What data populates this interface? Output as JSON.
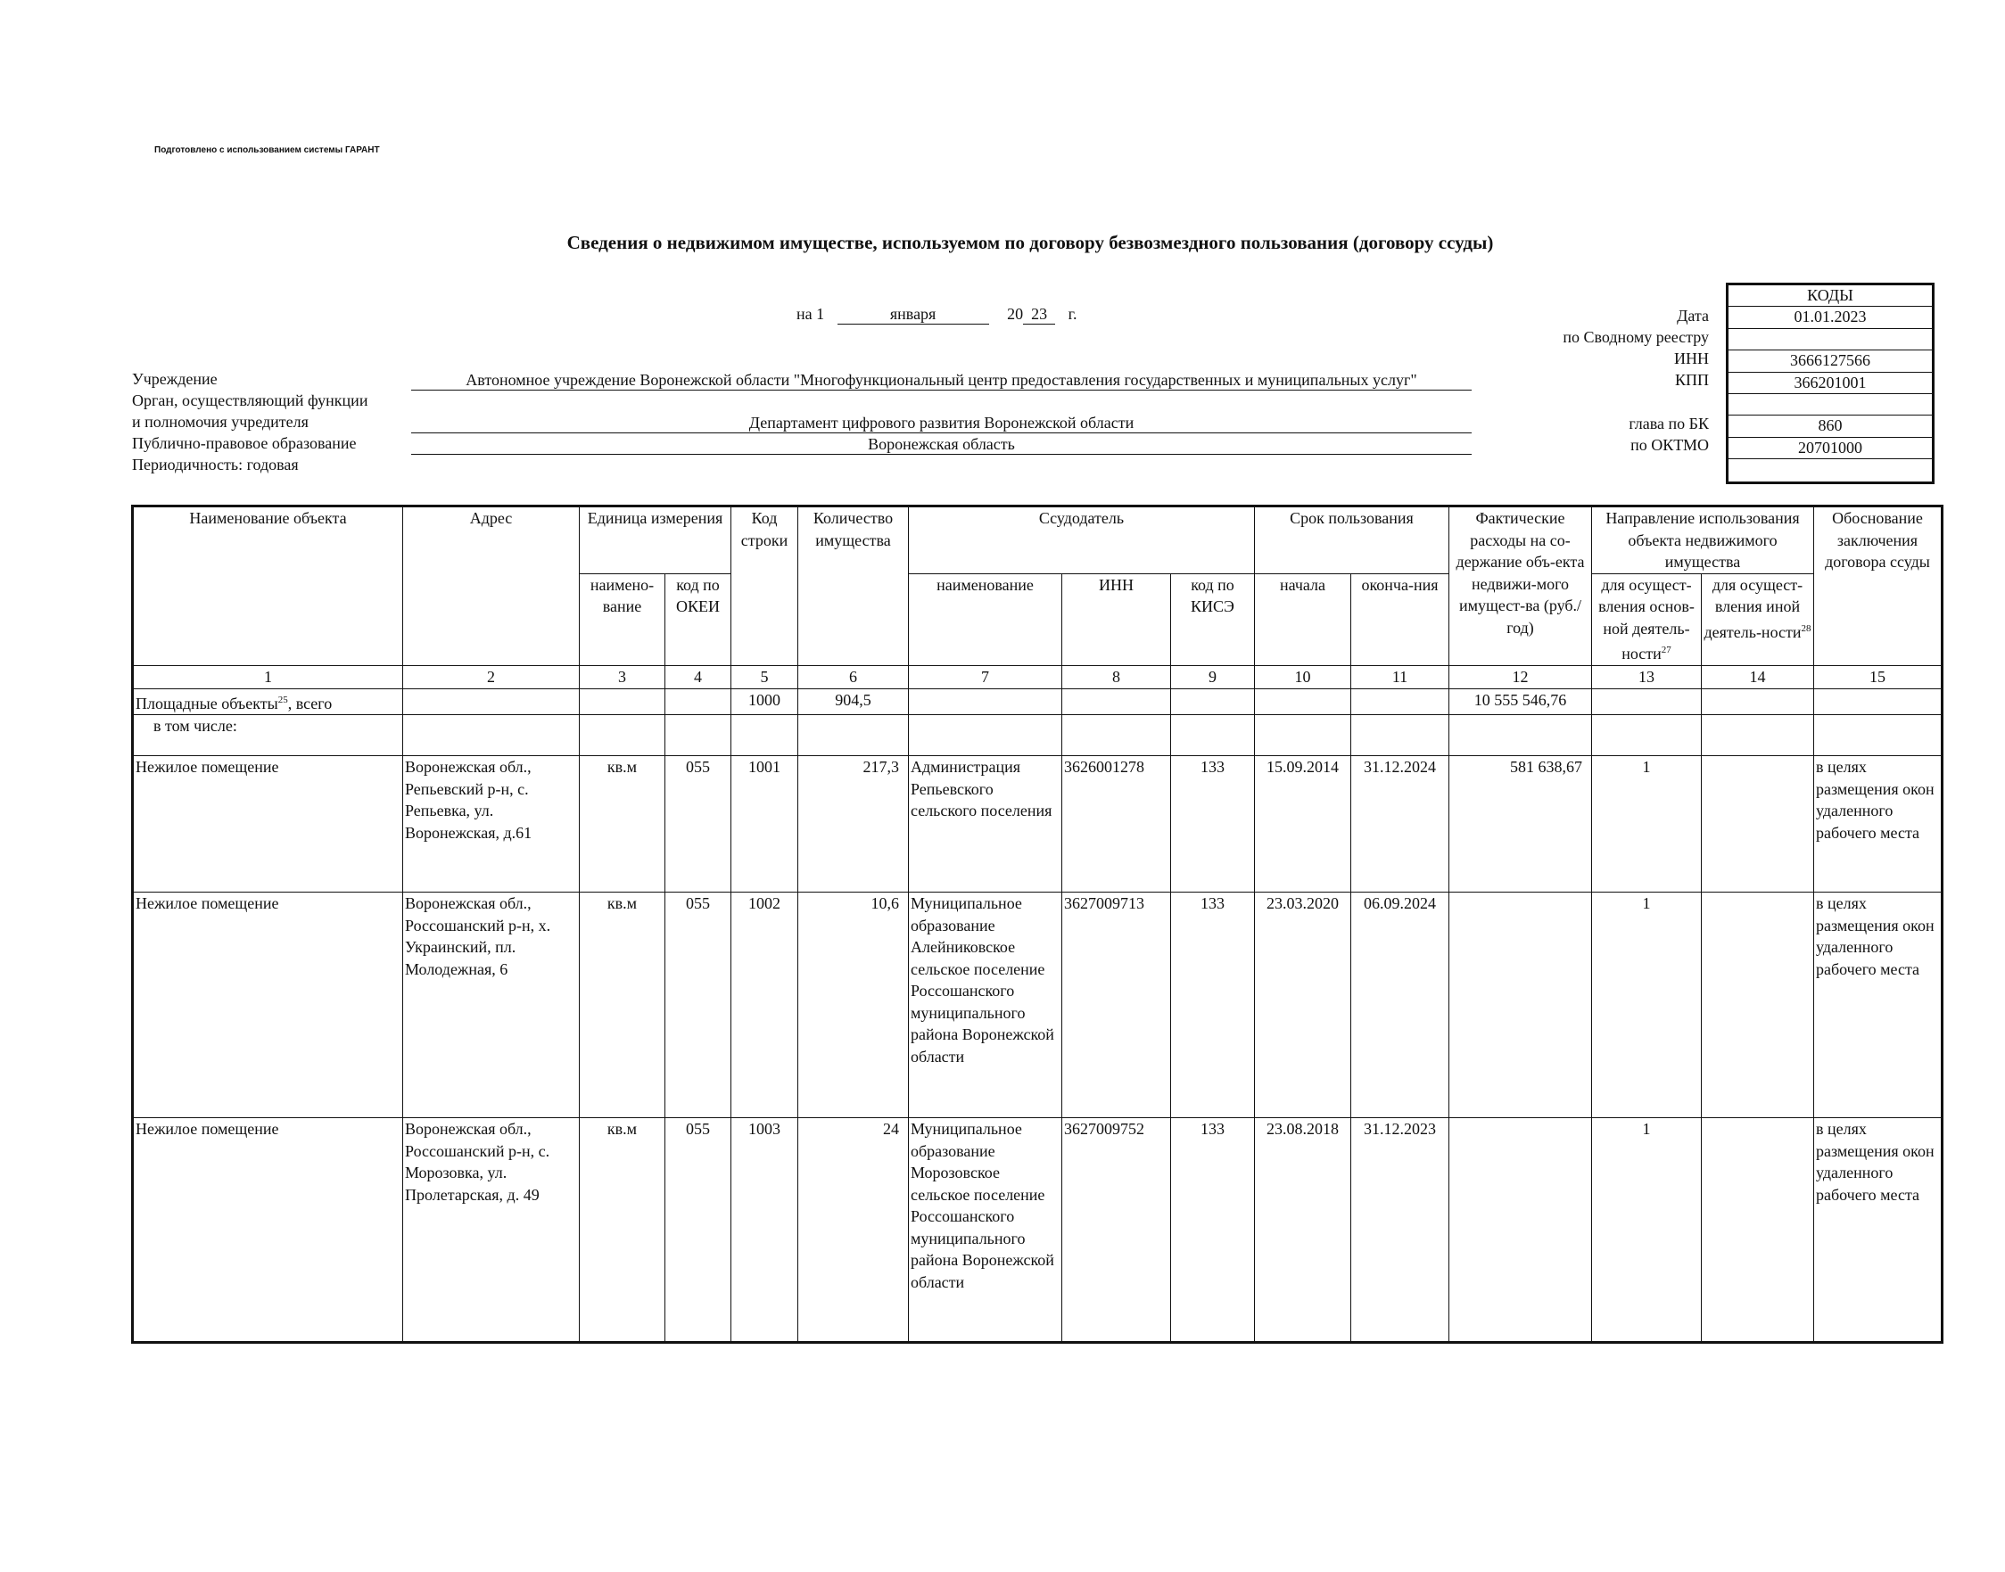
{
  "prepared": "Подготовлено с использованием системы ГАРАНТ",
  "title": "Сведения о недвижимом имуществе, используемом по договору безвозмездного пользования (договору ссуды)",
  "date": {
    "prefix": "на 1",
    "month": "января",
    "year_prefix": "20",
    "year": "23",
    "suffix": "г."
  },
  "left_labels": [
    "Учреждение",
    "Орган, осуществляющий функции",
    "и полномочия учредителя",
    "Публично-правовое образование",
    "Периодичность: годовая"
  ],
  "fields": {
    "institution": "Автономное учреждение Воронежской области \"Многофункциональный центр предоставления государственных и муниципальных услуг\"",
    "founder": "Департамент цифрового развития Воронежской области",
    "public_entity": "Воронежская область"
  },
  "right_labels": {
    "date": "Дата",
    "registry": "по Сводному реестру",
    "inn": "ИНН",
    "kpp": "КПП",
    "bk": "глава по БК",
    "oktmo": "по ОКТМО"
  },
  "codes": {
    "header": "КОДЫ",
    "date": "01.01.2023",
    "registry": "",
    "inn": "3666127566",
    "kpp": "366201001",
    "blank1": "",
    "bk": "860",
    "oktmo": "20701000",
    "blank2": ""
  },
  "table": {
    "headers": {
      "name": "Наименование объекта",
      "address": "Адрес",
      "unit": "Единица измерения",
      "unit_name": "наимено-вание",
      "unit_okei": "код по ОКЕИ",
      "row_code": "Код строки",
      "quantity": "Количество имущества",
      "lender": "Ссудодатель",
      "lender_name": "наименование",
      "lender_inn": "ИНН",
      "lender_kise": "код по КИСЭ",
      "term": "Срок пользования",
      "term_start": "начала",
      "term_end": "оконча-ния",
      "expenses": "Фактические расходы на со-держание объ-екта недвижи-мого имущест-ва (руб./год)",
      "direction": "Направление использования объекта недвижимого имущества",
      "dir_main": "для осущест-вления основ-ной деятель-ности",
      "dir_main_sup": "27",
      "dir_other": "для осущест-вления иной деятель-ности",
      "dir_other_sup": "28",
      "basis": "Обоснование заключения договора ссуды"
    },
    "col_numbers": [
      "1",
      "2",
      "3",
      "4",
      "5",
      "6",
      "7",
      "8",
      "9",
      "10",
      "11",
      "12",
      "13",
      "14",
      "15"
    ],
    "total": {
      "label": "Площадные объекты",
      "sup": "25",
      "label_suffix": ", всего",
      "code": "1000",
      "quantity": "904,5",
      "expenses": "10 555 546,76"
    },
    "including": "в том числе:",
    "rows": [
      {
        "name": "Нежилое помещение",
        "address": "Воронежская обл., Репьевский р-н, с. Репьевка, ул. Воронежская, д.61",
        "unit": "кв.м",
        "okei": "055",
        "code": "1001",
        "quantity": "217,3",
        "lender": "Администрация Репьевского сельского поселения",
        "inn": "3626001278",
        "kise": "133",
        "start": "15.09.2014",
        "end": "31.12.2024",
        "expenses": "581 638,67",
        "main": "1",
        "other": "",
        "basis": "в целях размещения окон удаленного рабочего места"
      },
      {
        "name": "Нежилое помещение",
        "address": "Воронежская обл., Россошанский р-н, х. Украинский, пл. Молодежная, 6",
        "unit": "кв.м",
        "okei": "055",
        "code": "1002",
        "quantity": "10,6",
        "lender": "Муниципальное образование Алейниковское сельское поселение Россошанского муниципального района Воронежской области",
        "inn": "3627009713",
        "kise": "133",
        "start": "23.03.2020",
        "end": "06.09.2024",
        "expenses": "",
        "main": "1",
        "other": "",
        "basis": "в целях размещения окон удаленного рабочего места"
      },
      {
        "name": "Нежилое помещение",
        "address": "Воронежская обл., Россошанский р-н, с. Морозовка, ул. Пролетарская, д. 49",
        "unit": "кв.м",
        "okei": "055",
        "code": "1003",
        "quantity": "24",
        "lender": "Муниципальное образование Морозовское сельское поселение Россошанского муниципального района Воронежской области",
        "inn": "3627009752",
        "kise": "133",
        "start": "23.08.2018",
        "end": "31.12.2023",
        "expenses": "",
        "main": "1",
        "other": "",
        "basis": "в целях размещения окон удаленного рабочего места"
      }
    ]
  }
}
